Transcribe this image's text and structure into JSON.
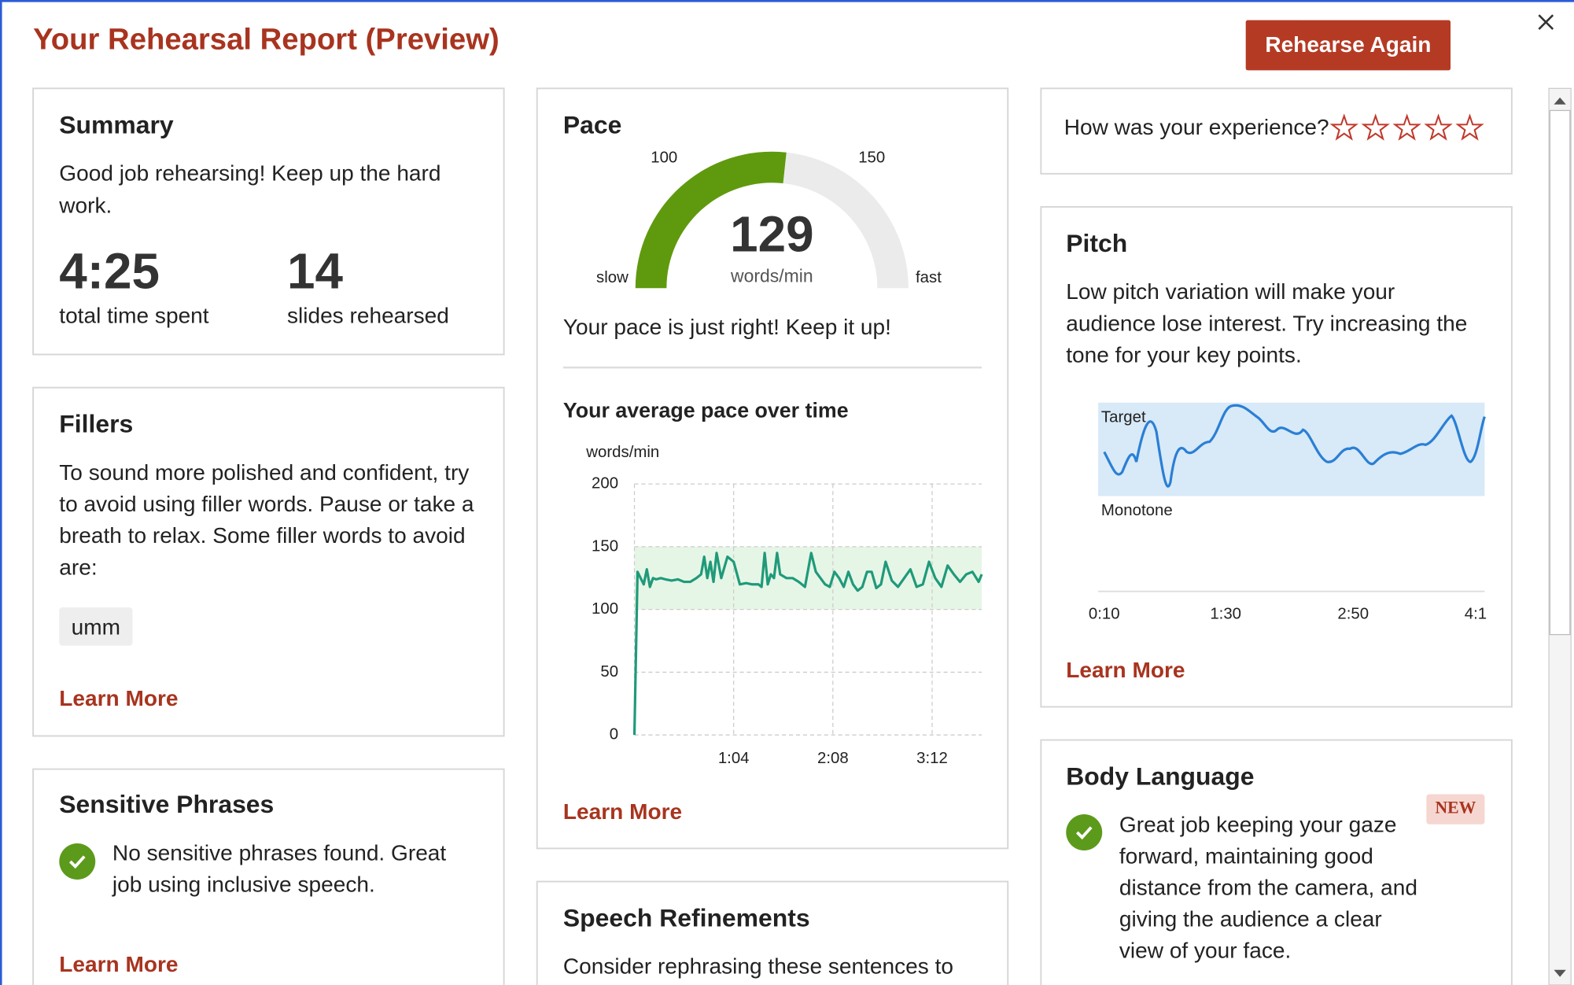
{
  "header": {
    "title": "Your Rehearsal Report (Preview)",
    "button": "Rehearse Again"
  },
  "summary": {
    "title": "Summary",
    "text": [
      "Good job rehearsing! Keep up the hard",
      "work."
    ],
    "time": "4:25",
    "time_label": "total time spent",
    "slides": 14,
    "slides_label": "slides rehearsed"
  },
  "fillers": {
    "title": "Fillers",
    "text": [
      "To sound more polished and confident, try",
      "to avoid using filler words. Pause or take a",
      "breath to relax. Some filler words to avoid",
      "are:"
    ],
    "words": [
      "umm"
    ],
    "link": "Learn More"
  },
  "sensitive": {
    "title": "Sensitive Phrases",
    "text": [
      "No sensitive phrases found. Great",
      "job using inclusive speech."
    ],
    "link": "Learn More"
  },
  "pace": {
    "title": "Pace",
    "gauge": {
      "value": 129,
      "unit": "words/min",
      "ticks": [
        100,
        150
      ],
      "low": "slow",
      "high": "fast"
    },
    "message": "Your pace is just right! Keep it up!",
    "link": "Learn More"
  },
  "chart_data": {
    "type": "line",
    "title": "Your average pace over time",
    "y_label": "words/min",
    "x": [
      0,
      2,
      4,
      6,
      8,
      10,
      12,
      14,
      17,
      20,
      24,
      28,
      32,
      36,
      40,
      43,
      45,
      47,
      49,
      51,
      53,
      56,
      60,
      64,
      68,
      72,
      76,
      80,
      82,
      84,
      86,
      88,
      90,
      92,
      94,
      98,
      102,
      106,
      110,
      114,
      117,
      120,
      123,
      126,
      129,
      132,
      135,
      138,
      141,
      144,
      147,
      150,
      153,
      156,
      159,
      162,
      166,
      170,
      174,
      178,
      182,
      186,
      190,
      194,
      198,
      202,
      206,
      210,
      214,
      218,
      222,
      224
    ],
    "values": [
      0,
      130,
      125,
      120,
      132,
      118,
      125,
      124,
      125,
      124,
      123,
      124,
      122,
      122,
      125,
      128,
      142,
      125,
      138,
      122,
      145,
      125,
      142,
      138,
      120,
      121,
      120,
      120,
      118,
      145,
      120,
      128,
      125,
      145,
      128,
      125,
      125,
      122,
      118,
      145,
      130,
      125,
      120,
      118,
      130,
      125,
      118,
      130,
      120,
      115,
      118,
      130,
      130,
      117,
      120,
      138,
      123,
      118,
      125,
      132,
      118,
      120,
      138,
      125,
      118,
      135,
      128,
      122,
      128,
      130,
      122,
      128
    ],
    "color": "#1f9a7a",
    "target_band": [
      100,
      150
    ],
    "band_color": "#e6f6e6",
    "xlim": [
      0,
      224
    ],
    "ylim": [
      0,
      200
    ],
    "yticks": [
      0,
      50,
      100,
      150,
      200
    ],
    "xticks": [
      {
        "value": 64,
        "label": "1:04"
      },
      {
        "value": 128,
        "label": "2:08"
      },
      {
        "value": 192,
        "label": "3:12"
      }
    ],
    "grid": true
  },
  "refinements": {
    "title": "Speech Refinements",
    "text": [
      "Consider rephrasing these sentences to"
    ]
  },
  "rating": {
    "question": "How was your experience?",
    "stars": 5
  },
  "pitch": {
    "title": "Pitch",
    "text": [
      "Low pitch variation will make your",
      "audience lose interest. Try increasing the",
      "tone for your key points."
    ],
    "target": "Target",
    "monotone": "Monotone",
    "x_labels": [
      "0:10",
      "1:30",
      "2:50",
      "4:1"
    ],
    "link": "Learn More"
  },
  "body_language": {
    "title": "Body Language",
    "badge": "NEW",
    "text": [
      "Great job keeping your gaze",
      "forward, maintaining good",
      "distance from the camera, and",
      "giving the audience a clear",
      "view of your face."
    ]
  }
}
